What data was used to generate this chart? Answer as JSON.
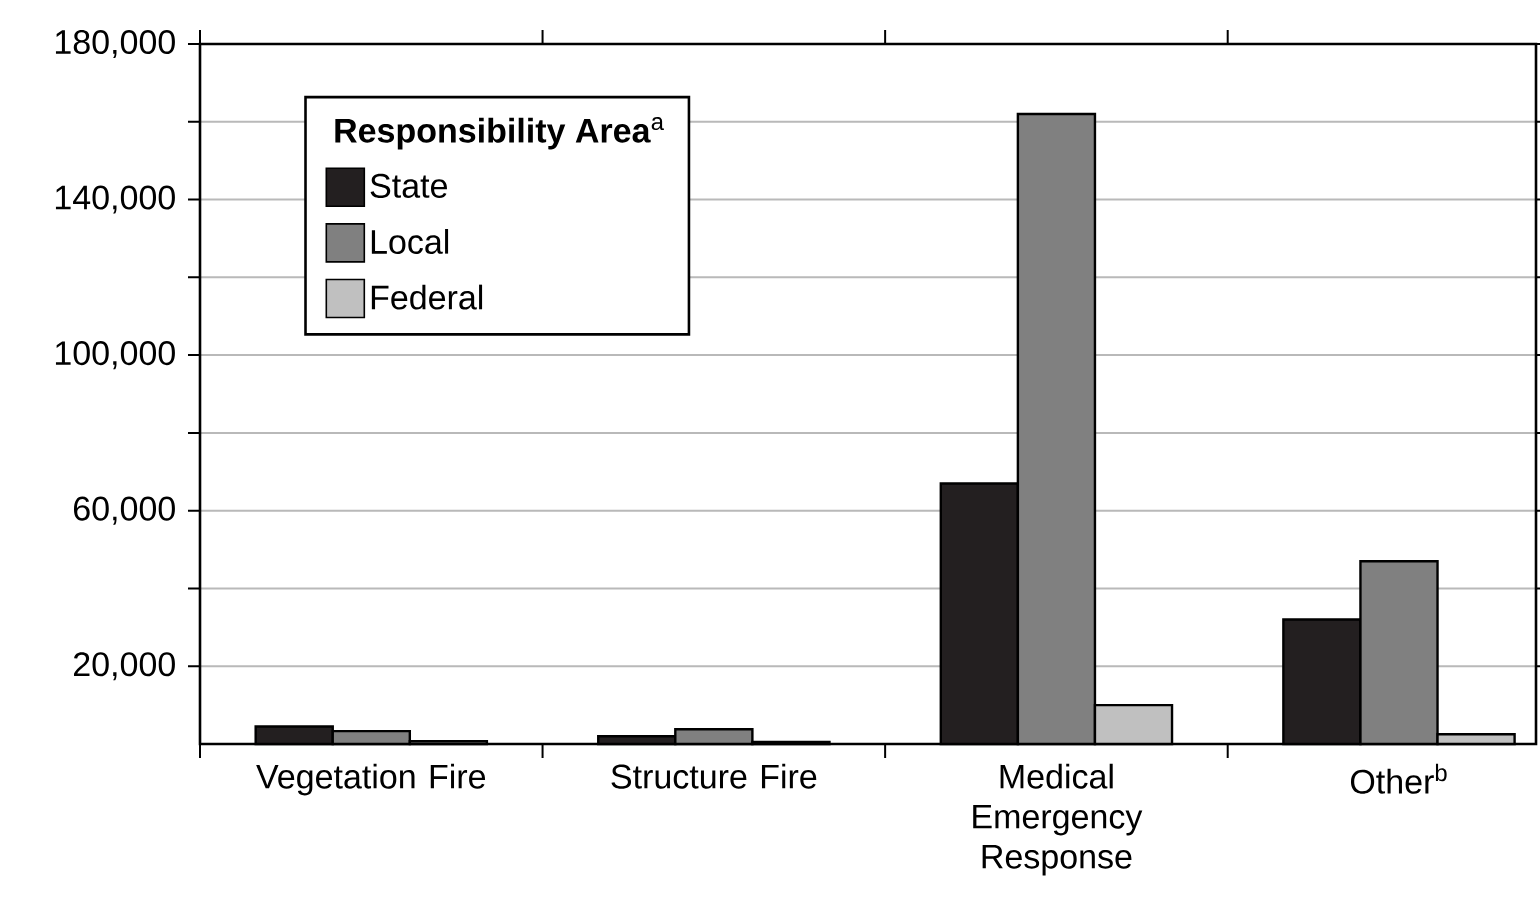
{
  "chart_data": {
    "type": "bar",
    "legend_title": "**Responsibility Area**$^{a}$",
    "categories": [
      "Vegetation Fire",
      "Structure Fire",
      "Medical Emergency Response",
      "Other$^{b}$"
    ],
    "series": [
      {
        "name": "State",
        "color": "#231f20",
        "values": [
          4500,
          2000,
          67000,
          32000
        ]
      },
      {
        "name": "Local",
        "color": "#808080",
        "values": [
          3300,
          3800,
          162000,
          47000
        ]
      },
      {
        "name": "Federal",
        "color": "#c0c0c0",
        "values": [
          700,
          500,
          10000,
          2500
        ]
      }
    ],
    "ylim": [
      0,
      180000
    ],
    "yticks": [
      {
        "value": 20000,
        "label": "20,000"
      },
      {
        "value": 40000,
        "label": null
      },
      {
        "value": 60000,
        "label": "60,000"
      },
      {
        "value": 80000,
        "label": null
      },
      {
        "value": 100000,
        "label": "100,000"
      },
      {
        "value": 120000,
        "label": null
      },
      {
        "value": 140000,
        "label": "140,000"
      },
      {
        "value": 160000,
        "label": null
      },
      {
        "value": 180000,
        "label": "180,000"
      }
    ],
    "grid": "y",
    "legend": "top left"
  }
}
